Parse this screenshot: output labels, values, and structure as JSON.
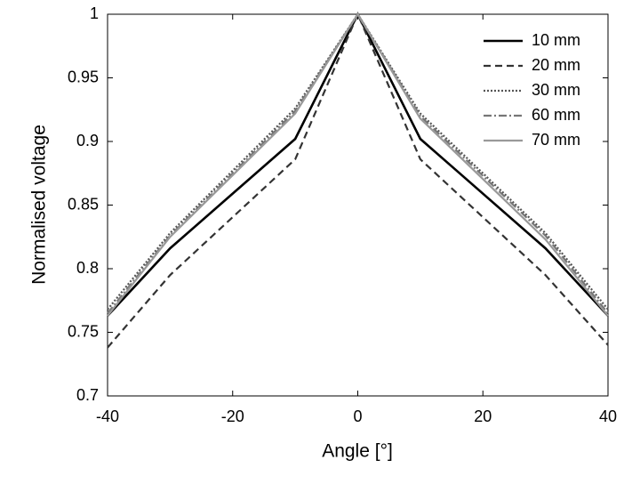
{
  "chart_data": {
    "type": "line",
    "xlabel": "Angle [°]",
    "ylabel": "Normalised voltage",
    "x": [
      -40,
      -30,
      -10,
      0,
      10,
      30,
      40
    ],
    "series": [
      {
        "name": "10 mm",
        "color": "#000000",
        "style": "solid",
        "values": [
          0.763,
          0.816,
          0.902,
          1,
          0.902,
          0.816,
          0.763
        ]
      },
      {
        "name": "20 mm",
        "color": "#333333",
        "style": "dashed",
        "values": [
          0.738,
          0.795,
          0.886,
          1,
          0.886,
          0.795,
          0.74
        ]
      },
      {
        "name": "30 mm",
        "color": "#555555",
        "style": "dotted",
        "values": [
          0.768,
          0.828,
          0.926,
          1,
          0.922,
          0.828,
          0.768
        ]
      },
      {
        "name": "60 mm",
        "color": "#777777",
        "style": "dashdot",
        "values": [
          0.765,
          0.826,
          0.924,
          1,
          0.92,
          0.826,
          0.765
        ]
      },
      {
        "name": "70 mm",
        "color": "#999999",
        "style": "solid",
        "values": [
          0.763,
          0.825,
          0.922,
          1,
          0.918,
          0.823,
          0.763
        ]
      }
    ],
    "xlim": [
      -40,
      40
    ],
    "xticks": [
      -40,
      -20,
      0,
      20,
      40
    ],
    "ylim": [
      0.7,
      1
    ],
    "yticks": [
      0.7,
      0.75,
      0.8,
      0.85,
      0.9,
      0.95,
      1
    ],
    "grid": false,
    "legend": "upper right"
  }
}
